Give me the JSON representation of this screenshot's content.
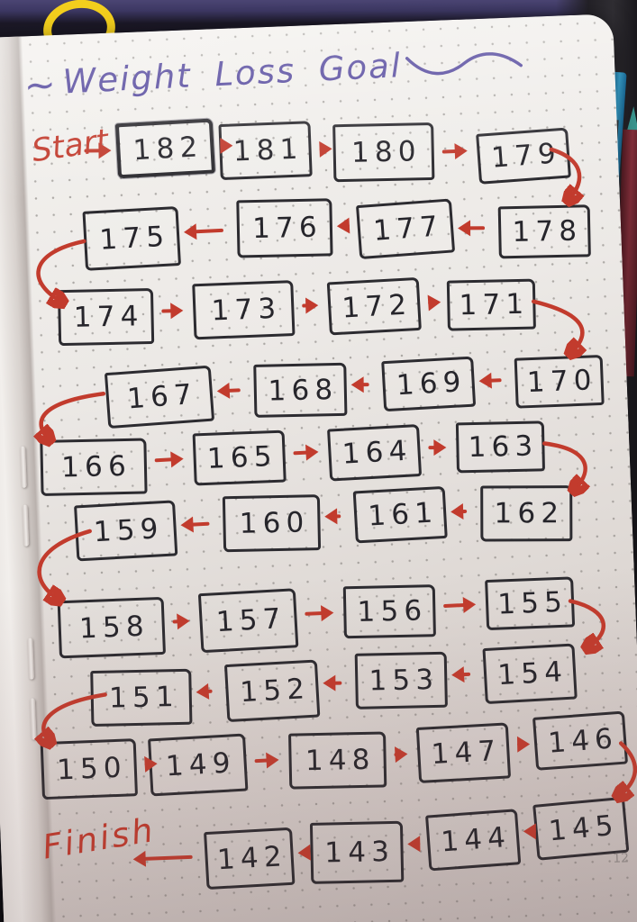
{
  "page": {
    "title": {
      "decor_left": "~",
      "text": "Weight Loss Goal",
      "decor_right": "~"
    },
    "start_label": "Start",
    "finish_label": "Finish",
    "page_number": "12",
    "rows": [
      {
        "direction": "right",
        "values": [
          "182",
          "181",
          "180",
          "179"
        ]
      },
      {
        "direction": "left",
        "values": [
          "175",
          "176",
          "177",
          "178"
        ]
      },
      {
        "direction": "right",
        "values": [
          "174",
          "173",
          "172",
          "171"
        ]
      },
      {
        "direction": "left",
        "values": [
          "167",
          "168",
          "169",
          "170"
        ]
      },
      {
        "direction": "right",
        "values": [
          "166",
          "165",
          "164",
          "163"
        ]
      },
      {
        "direction": "left",
        "values": [
          "159",
          "160",
          "161",
          "162"
        ]
      },
      {
        "direction": "right",
        "values": [
          "158",
          "157",
          "156",
          "155"
        ]
      },
      {
        "direction": "left",
        "values": [
          "151",
          "152",
          "153",
          "154"
        ]
      },
      {
        "direction": "right",
        "values": [
          "150",
          "149",
          "148",
          "147",
          "146"
        ]
      },
      {
        "direction": "left",
        "values": [
          "142",
          "143",
          "144",
          "145"
        ]
      }
    ]
  },
  "colors": {
    "ink_red": "#c23b2d",
    "ink_purple": "#55499e",
    "box_border": "#2c2b30",
    "paper": "#ece9e6"
  },
  "background_objects": [
    "yellow-elastic-band",
    "teal-tip-pencil",
    "blue-pencil",
    "maroon-pencil",
    "dark-shelf"
  ]
}
